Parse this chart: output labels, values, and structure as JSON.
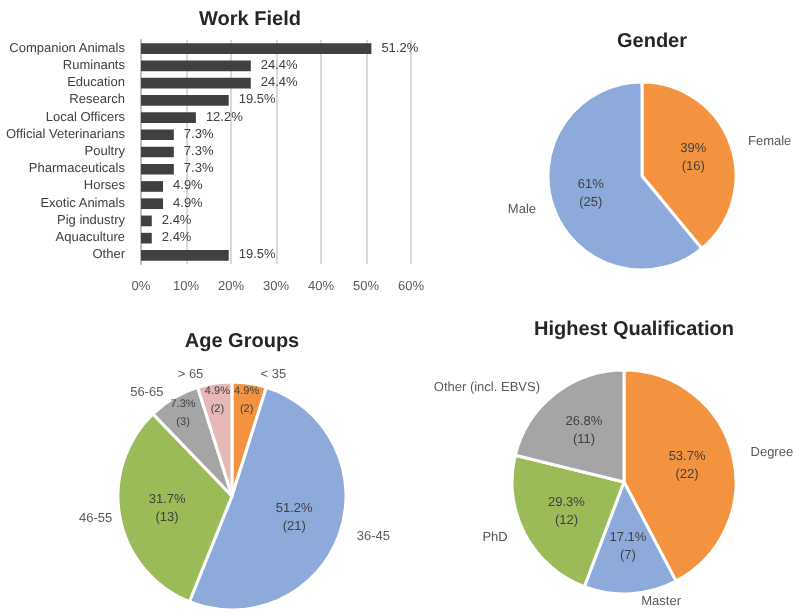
{
  "chart_data": [
    {
      "type": "bar",
      "orientation": "horizontal",
      "title": "Work Field",
      "categories": [
        "Companion Animals",
        "Ruminants",
        "Education",
        "Research",
        "Local Officers",
        "Official Veterinarians",
        "Poultry",
        "Pharmaceuticals",
        "Horses",
        "Exotic Animals",
        "Pig industry",
        "Aquaculture",
        "Other"
      ],
      "values": [
        51.2,
        24.4,
        24.4,
        19.5,
        12.2,
        7.3,
        7.3,
        7.3,
        4.9,
        4.9,
        2.4,
        2.4,
        19.5
      ],
      "value_labels": [
        "51.2%",
        "24.4%",
        "24.4%",
        "19.5%",
        "12.2%",
        "7.3%",
        "7.3%",
        "7.3%",
        "4.9%",
        "4.9%",
        "2.4%",
        "2.4%",
        "19.5%"
      ],
      "color": "#404040",
      "xlim": [
        0,
        60
      ],
      "xticks": [
        {
          "value": 0,
          "label": "0%"
        },
        {
          "value": 10,
          "label": "10%"
        },
        {
          "value": 20,
          "label": "20%"
        },
        {
          "value": 30,
          "label": "30%"
        },
        {
          "value": 40,
          "label": "40%"
        },
        {
          "value": 50,
          "label": "50%"
        },
        {
          "value": 60,
          "label": "60%"
        }
      ],
      "grid": "x"
    },
    {
      "type": "pie",
      "title": "Gender",
      "categories": [
        "Female",
        "Male"
      ],
      "values": [
        16,
        25
      ],
      "colors": [
        "#f4933f",
        "#8eaadb"
      ],
      "value_labels": [
        "39%\n(16)",
        "61%\n(25)"
      ]
    },
    {
      "type": "pie",
      "title": "Age Groups",
      "categories": [
        "< 35",
        "36-45",
        "46-55",
        "56-65",
        "> 65"
      ],
      "values": [
        2,
        21,
        13,
        3,
        2
      ],
      "colors": [
        "#f4933f",
        "#8eaadb",
        "#9bbb59",
        "#a5a5a5",
        "#e6b9b8"
      ],
      "value_labels": [
        "4.9%\n(2)",
        "51.2%\n(21)",
        "31.7%\n(13)",
        "7.3%\n(3)",
        "4.9%\n(2)"
      ]
    },
    {
      "type": "pie",
      "title": "Highest Qualification",
      "categories": [
        "Degree",
        "Master",
        "PhD",
        "Other (incl. EBVS)"
      ],
      "values": [
        22,
        7,
        12,
        11
      ],
      "colors": [
        "#f4933f",
        "#8eaadb",
        "#9bbb59",
        "#a5a5a5"
      ],
      "value_labels": [
        "53.7%\n(22)",
        "17.1%\n(7)",
        "29.3%\n(12)",
        "26.8%\n(11)"
      ]
    }
  ]
}
